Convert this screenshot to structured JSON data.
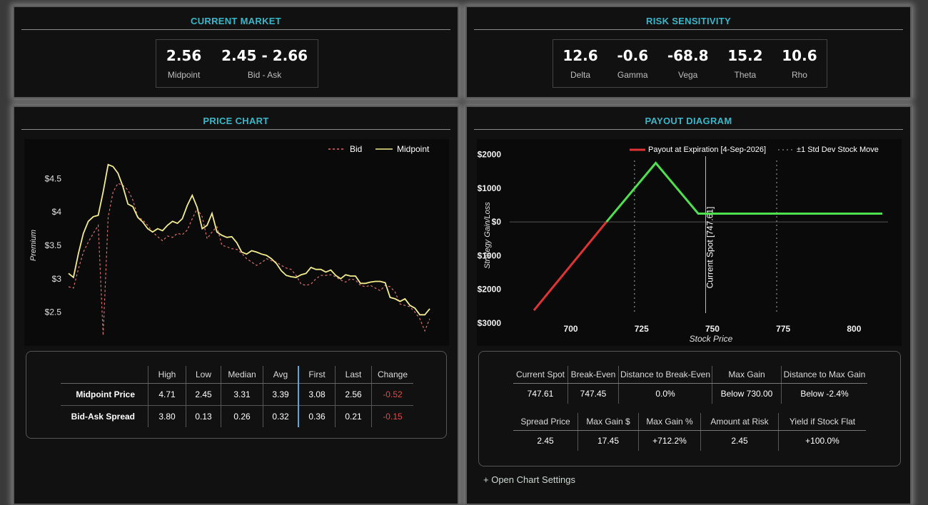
{
  "current_market": {
    "title": "CURRENT MARKET",
    "stats": [
      {
        "value": "2.56",
        "label": "Midpoint"
      },
      {
        "value": "2.45 - 2.66",
        "label": "Bid - Ask"
      }
    ]
  },
  "risk_sensitivity": {
    "title": "RISK SENSITIVITY",
    "stats": [
      {
        "value": "12.6",
        "label": "Delta"
      },
      {
        "value": "-0.6",
        "label": "Gamma"
      },
      {
        "value": "-68.8",
        "label": "Vega"
      },
      {
        "value": "15.2",
        "label": "Theta"
      },
      {
        "value": "10.6",
        "label": "Rho"
      }
    ]
  },
  "price_chart": {
    "title": "PRICE CHART",
    "stats_table": {
      "headers": [
        "High",
        "Low",
        "Median",
        "Avg",
        "First",
        "Last",
        "Change"
      ],
      "rows": [
        {
          "label": "Midpoint Price",
          "values": [
            "4.71",
            "2.45",
            "3.31",
            "3.39",
            "3.08",
            "2.56",
            "-0.52"
          ]
        },
        {
          "label": "Bid-Ask Spread",
          "values": [
            "3.80",
            "0.13",
            "0.26",
            "0.32",
            "0.36",
            "0.21",
            "-0.15"
          ]
        }
      ]
    }
  },
  "payout_diagram": {
    "title": "PAYOUT DIAGRAM",
    "table1": {
      "headers": [
        "Current Spot",
        "Break-Even",
        "Distance to Break-Even",
        "Max Gain",
        "Distance to Max Gain"
      ],
      "values": [
        "747.61",
        "747.45",
        "0.0%",
        "Below 730.00",
        "Below -2.4%"
      ]
    },
    "table2": {
      "headers": [
        "Spread Price",
        "Max Gain $",
        "Max Gain %",
        "Amount at Risk",
        "Yield if Stock Flat"
      ],
      "values": [
        "2.45",
        "17.45",
        "+712.2%",
        "2.45",
        "+100.0%"
      ]
    },
    "open_settings_label": "+ Open Chart Settings"
  },
  "chart_data": [
    {
      "type": "line",
      "title": "",
      "xlabel": "",
      "ylabel": "Premium",
      "ylim": [
        2.1,
        4.9
      ],
      "yticks": [
        2.5,
        3,
        3.5,
        4,
        4.5
      ],
      "ytick_labels": [
        "$2.5",
        "$3",
        "$3.5",
        "$4",
        "$4.5"
      ],
      "legend": "top-right",
      "series": [
        {
          "name": "Bid",
          "style": "dashed",
          "color": "#d9706f",
          "values": [
            2.88,
            2.86,
            3.15,
            3.4,
            3.55,
            3.68,
            3.8,
            2.15,
            3.92,
            4.3,
            4.43,
            4.4,
            4.33,
            4.18,
            3.93,
            3.88,
            3.8,
            3.7,
            3.63,
            3.57,
            3.64,
            3.62,
            3.68,
            3.66,
            3.73,
            3.9,
            4.05,
            3.93,
            3.6,
            3.7,
            3.78,
            3.5,
            3.48,
            3.45,
            3.44,
            3.38,
            3.3,
            3.25,
            3.2,
            3.24,
            3.3,
            3.27,
            3.25,
            3.2,
            3.16,
            3.14,
            3.05,
            2.92,
            2.9,
            2.92,
            3.0,
            3.05,
            3.05,
            3.06,
            3.03,
            2.98,
            2.95,
            3.0,
            2.98,
            2.9,
            2.88,
            2.9,
            2.86,
            2.82,
            2.9,
            2.88,
            2.8,
            2.62,
            2.6,
            2.58,
            2.5,
            2.4,
            2.22,
            2.4
          ]
        },
        {
          "name": "Midpoint",
          "style": "solid",
          "color": "#f2ec8c",
          "values": [
            3.08,
            3.02,
            3.38,
            3.68,
            3.86,
            3.93,
            3.95,
            4.3,
            4.71,
            4.68,
            4.58,
            4.38,
            4.12,
            4.08,
            3.92,
            3.85,
            3.75,
            3.7,
            3.75,
            3.72,
            3.8,
            3.86,
            3.83,
            3.9,
            4.1,
            4.25,
            4.07,
            3.75,
            3.8,
            3.98,
            3.7,
            3.65,
            3.62,
            3.63,
            3.54,
            3.4,
            3.37,
            3.42,
            3.4,
            3.37,
            3.35,
            3.3,
            3.23,
            3.12,
            3.05,
            3.03,
            3.02,
            3.06,
            3.08,
            3.17,
            3.14,
            3.14,
            3.1,
            3.13,
            3.05,
            3.0,
            3.06,
            3.04,
            3.04,
            2.93,
            2.93,
            2.95,
            2.96,
            2.96,
            2.94,
            2.72,
            2.7,
            2.66,
            2.7,
            2.6,
            2.56,
            2.46,
            2.46,
            2.55
          ]
        }
      ]
    },
    {
      "type": "line",
      "title": "",
      "xlabel": "Stock Price",
      "ylabel": "Strategy Gain/Loss",
      "xlim": [
        686,
        812
      ],
      "ylim": [
        -3000,
        2200
      ],
      "xticks": [
        700,
        725,
        750,
        775,
        800
      ],
      "yticks": [
        -3000,
        -2000,
        -1000,
        0,
        1000,
        2000
      ],
      "ytick_labels": [
        "-$3000",
        "-$2000",
        "-$1000",
        "$0",
        "$1000",
        "$2000"
      ],
      "legend": "top-right",
      "series": [
        {
          "name": "Payout at Expiration [4-Sep-2026]",
          "x": [
            687,
            712.6,
            730,
            745,
            810
          ],
          "y": [
            -2620,
            0,
            1745,
            245,
            245
          ]
        }
      ],
      "std_dev_label": "±1 Std Dev Stock Move",
      "std_dev_x": [
        722.5,
        772.7
      ],
      "spot_label": "Current Spot [747.61]",
      "spot_x": 747.61
    }
  ]
}
